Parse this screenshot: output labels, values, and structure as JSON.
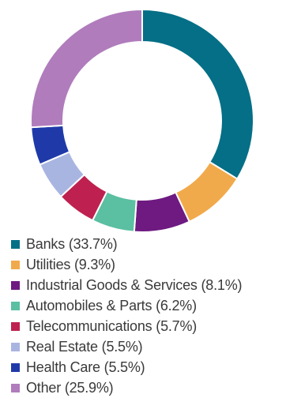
{
  "chart_data": {
    "type": "pie",
    "title": "",
    "categories": [
      "Banks",
      "Utilities",
      "Industrial Goods & Services",
      "Automobiles & Parts",
      "Telecommunications",
      "Real Estate",
      "Health Care",
      "Other"
    ],
    "values": [
      33.7,
      9.3,
      8.1,
      6.2,
      5.7,
      5.5,
      5.5,
      25.9
    ],
    "unit": "%",
    "colors": [
      "#046f86",
      "#f1aa4b",
      "#6e1a81",
      "#5bbfa1",
      "#be2150",
      "#a9b5e1",
      "#1f3aa8",
      "#b07cbc"
    ],
    "legend_labels": [
      "Banks (33.7%)",
      "Utilities (9.3%)",
      "Industrial Goods & Services (8.1%)",
      "Automobiles & Parts (6.2%)",
      "Telecommunications (5.7%)",
      "Real Estate (5.5%)",
      "Health Care (5.5%)",
      "Other (25.9%)"
    ],
    "donut": true,
    "legend_position": "bottom"
  }
}
